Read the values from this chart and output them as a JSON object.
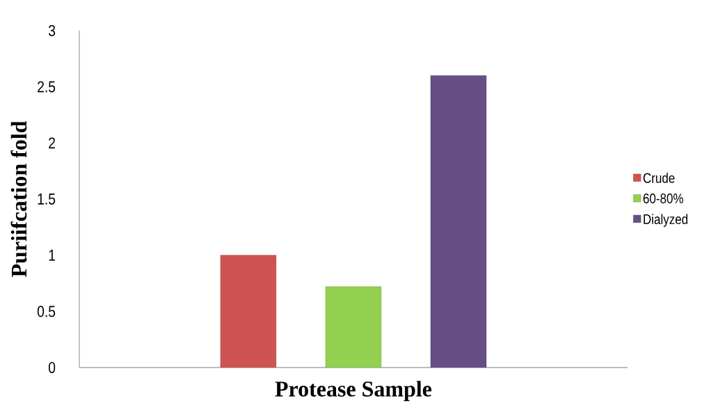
{
  "chart_data": {
    "type": "bar",
    "xlabel": "Protease Sample",
    "ylabel": "Puriifcation fold",
    "categories": [
      null
    ],
    "series": [
      {
        "name": "Crude",
        "color": "#cd5452",
        "values": [
          1.0
        ]
      },
      {
        "name": "60-80%",
        "color": "#92d050",
        "values": [
          0.72
        ]
      },
      {
        "name": "Dialyzed",
        "color": "#664f85",
        "values": [
          2.6
        ]
      }
    ],
    "ylim": [
      0,
      3
    ],
    "yticks": [
      0,
      0.5,
      1,
      1.5,
      2,
      2.5,
      3
    ],
    "grid": false,
    "legend": "right"
  }
}
